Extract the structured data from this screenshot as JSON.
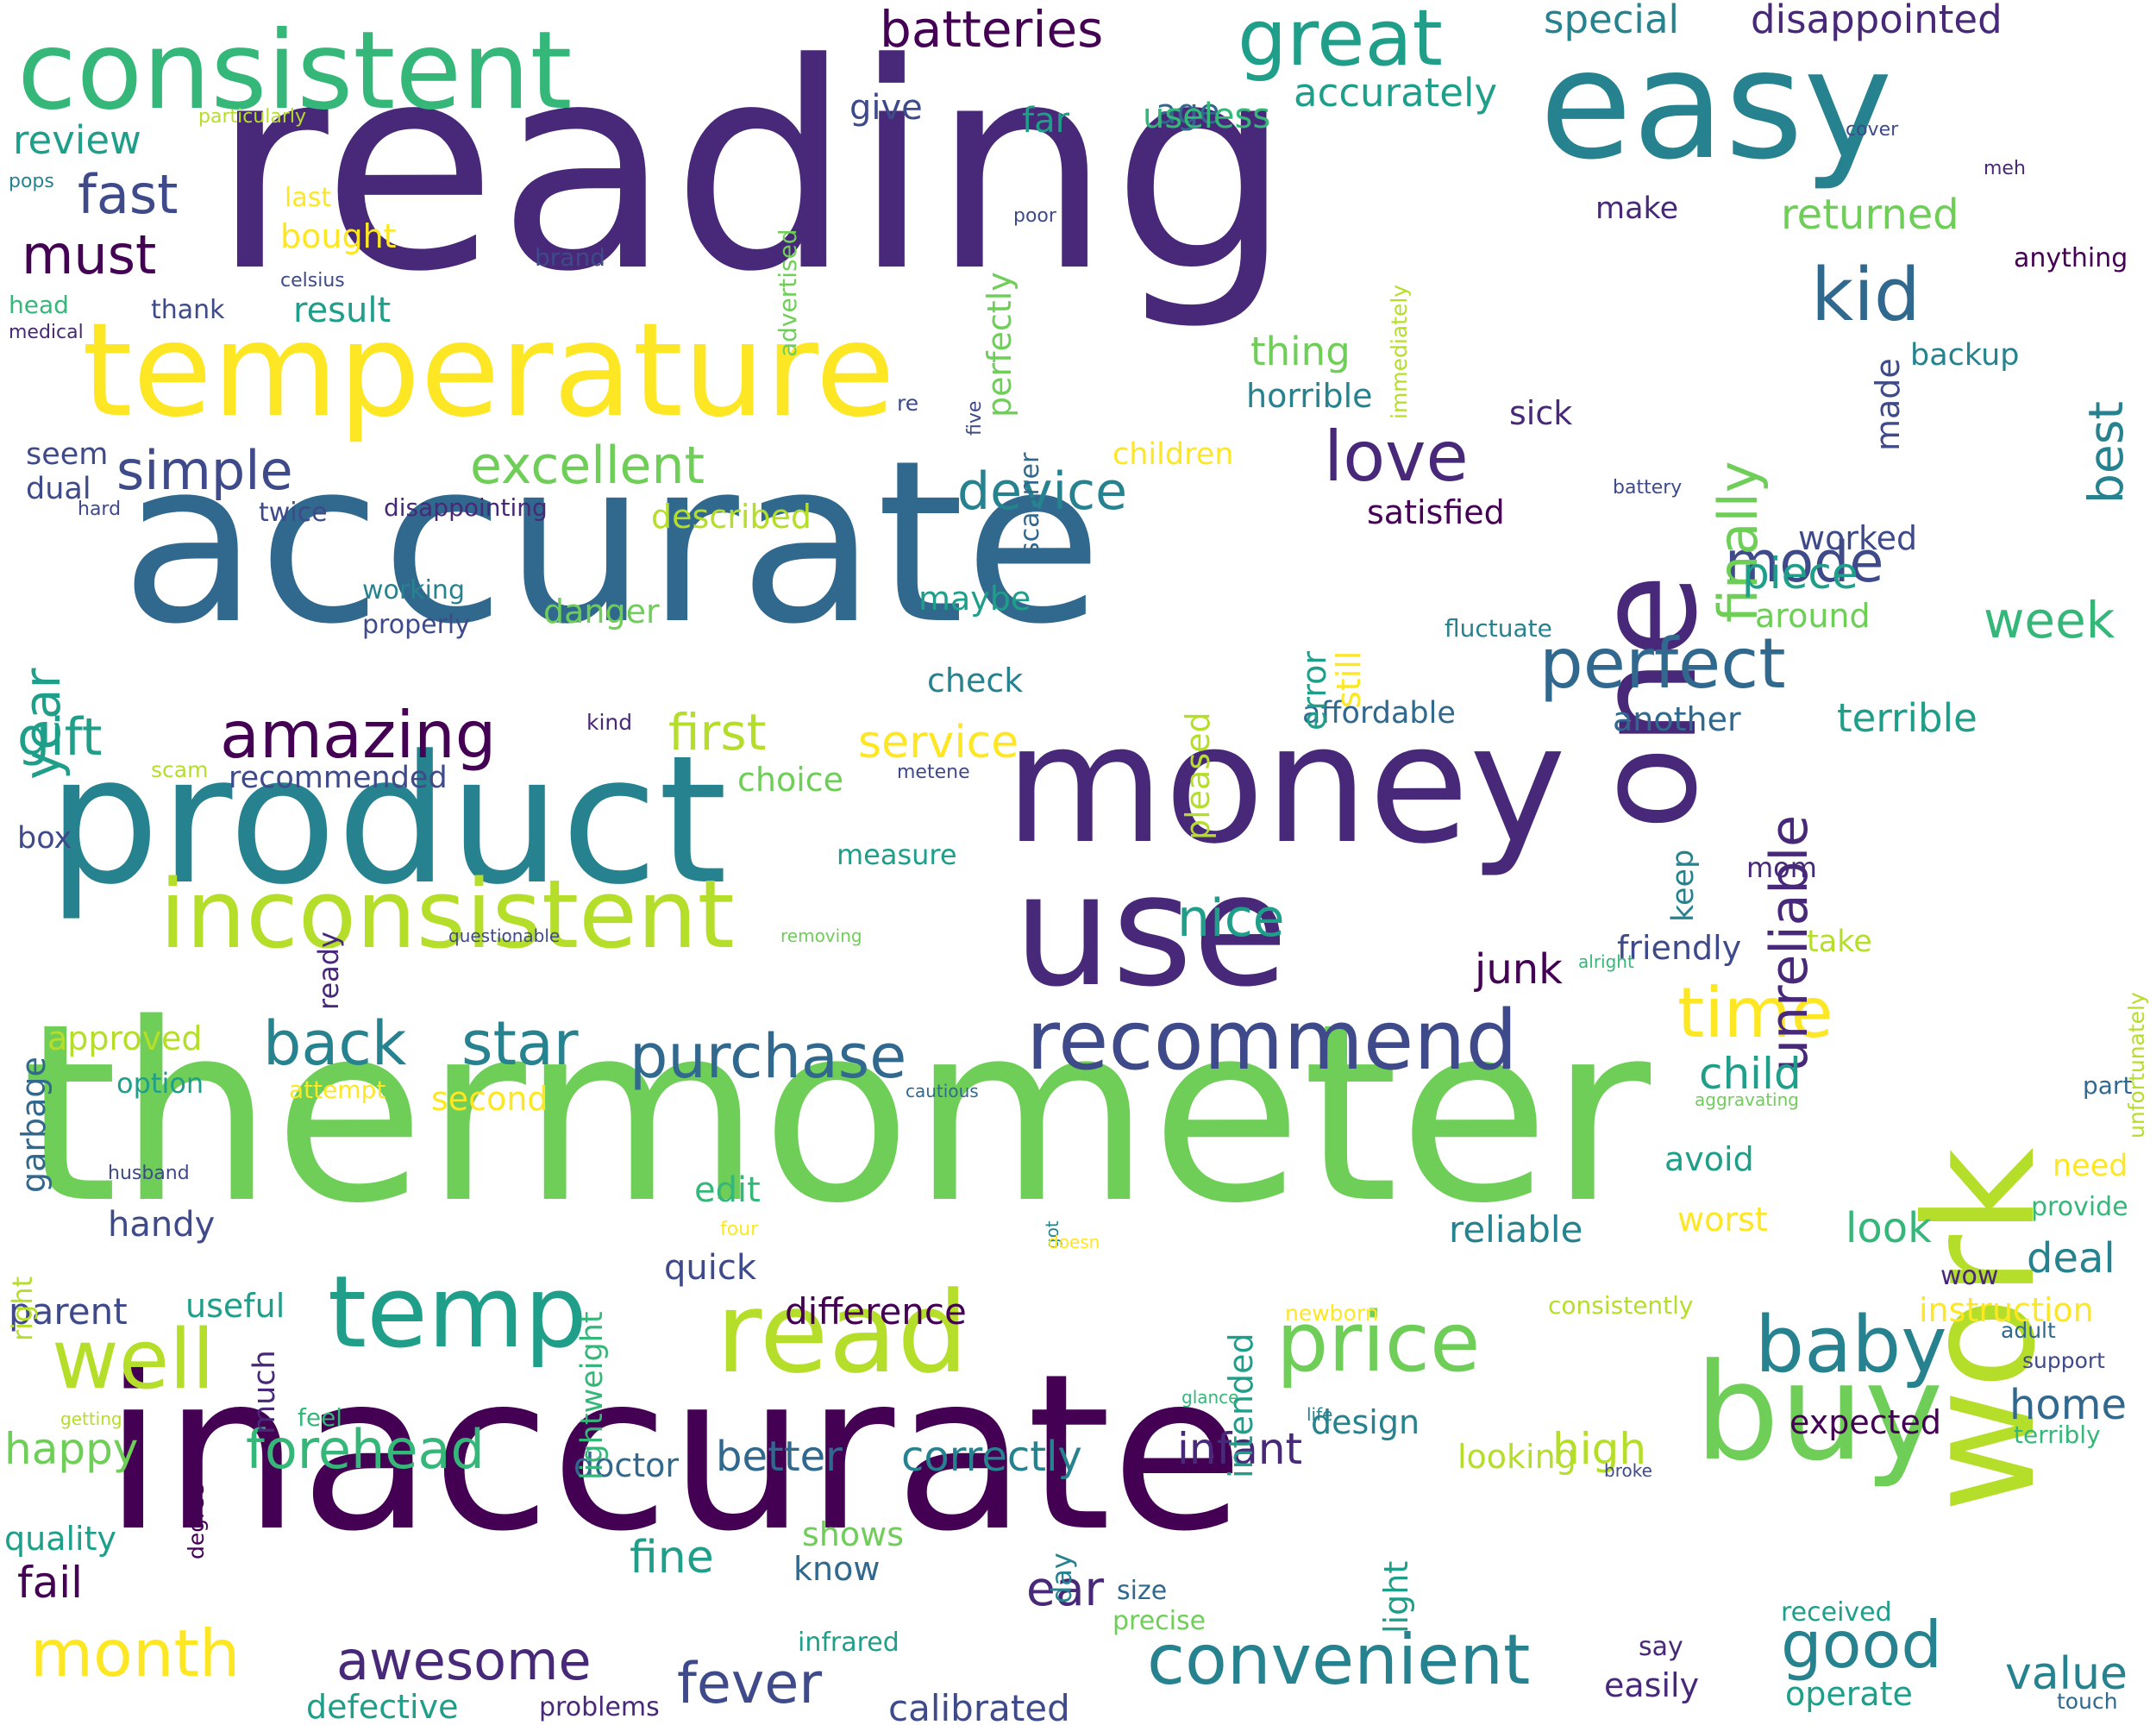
{
  "palette": {
    "d1": "#440154",
    "d2": "#482878",
    "d3": "#3e4a89",
    "d4": "#31688e",
    "d5": "#26828e",
    "d6": "#1f9e89",
    "d7": "#35b779",
    "d8": "#6ece58",
    "d9": "#b5de2b",
    "d10": "#fde725"
  },
  "words": [
    {
      "t": "reading",
      "c": "d2"
    },
    {
      "t": "accurate",
      "c": "d4"
    },
    {
      "t": "thermometer",
      "c": "d8"
    },
    {
      "t": "inaccurate",
      "c": "d1"
    },
    {
      "t": "product",
      "c": "d5"
    },
    {
      "t": "money",
      "c": "d2"
    },
    {
      "t": "use",
      "c": "d2"
    },
    {
      "t": "easy",
      "c": "d5"
    },
    {
      "t": "one",
      "c": "d2"
    },
    {
      "t": "work",
      "c": "d9"
    },
    {
      "t": "temperature",
      "c": "d10"
    },
    {
      "t": "consistent",
      "c": "d7"
    },
    {
      "t": "buy",
      "c": "d8"
    },
    {
      "t": "read",
      "c": "d9"
    },
    {
      "t": "temp",
      "c": "d6"
    },
    {
      "t": "inconsistent",
      "c": "d9"
    },
    {
      "t": "recommend",
      "c": "d3"
    },
    {
      "t": "great",
      "c": "d6"
    },
    {
      "t": "well",
      "c": "d9"
    },
    {
      "t": "price",
      "c": "d8"
    },
    {
      "t": "baby",
      "c": "d5"
    },
    {
      "t": "convenient",
      "c": "d5"
    },
    {
      "t": "good",
      "c": "d5"
    },
    {
      "t": "purchase",
      "c": "d4"
    },
    {
      "t": "back",
      "c": "d5"
    },
    {
      "t": "star",
      "c": "d5"
    },
    {
      "t": "amazing",
      "c": "d1"
    },
    {
      "t": "love",
      "c": "d2"
    },
    {
      "t": "perfect",
      "c": "d4"
    },
    {
      "t": "kid",
      "c": "d4"
    },
    {
      "t": "time",
      "c": "d10"
    },
    {
      "t": "forehead",
      "c": "d7"
    },
    {
      "t": "month",
      "c": "d10"
    },
    {
      "t": "fever",
      "c": "d3"
    },
    {
      "t": "awesome",
      "c": "d2"
    },
    {
      "t": "first",
      "c": "d9"
    },
    {
      "t": "excellent",
      "c": "d8"
    },
    {
      "t": "simple",
      "c": "d3"
    },
    {
      "t": "device",
      "c": "d5"
    },
    {
      "t": "mode",
      "c": "d3"
    },
    {
      "t": "batteries",
      "c": "d1"
    },
    {
      "t": "fast",
      "c": "d3"
    },
    {
      "t": "must",
      "c": "d1"
    },
    {
      "t": "gift",
      "c": "d6"
    },
    {
      "t": "year",
      "c": "d6"
    },
    {
      "t": "finally",
      "c": "d8"
    },
    {
      "t": "unreliable",
      "c": "d2"
    },
    {
      "t": "best",
      "c": "d5"
    },
    {
      "t": "week",
      "c": "d7"
    },
    {
      "t": "nice",
      "c": "d6"
    },
    {
      "t": "ear",
      "c": "d2"
    },
    {
      "t": "value",
      "c": "d5"
    },
    {
      "t": "home",
      "c": "d4"
    },
    {
      "t": "deal",
      "c": "d5"
    },
    {
      "t": "infant",
      "c": "d2"
    },
    {
      "t": "high",
      "c": "d9"
    },
    {
      "t": "happy",
      "c": "d8"
    },
    {
      "t": "fine",
      "c": "d6"
    },
    {
      "t": "better",
      "c": "d4"
    },
    {
      "t": "correctly",
      "c": "d5"
    },
    {
      "t": "difference",
      "c": "d1"
    },
    {
      "t": "child",
      "c": "d6"
    },
    {
      "t": "accurately",
      "c": "d6"
    },
    {
      "t": "disappointed",
      "c": "d2"
    },
    {
      "t": "special",
      "c": "d5"
    },
    {
      "t": "returned",
      "c": "d8"
    },
    {
      "t": "service",
      "c": "d10"
    },
    {
      "t": "piece",
      "c": "d6"
    },
    {
      "t": "fail",
      "c": "d1"
    },
    {
      "t": "calibrated",
      "c": "d3"
    },
    {
      "t": "terrible",
      "c": "d6"
    },
    {
      "t": "defective",
      "c": "d6"
    },
    {
      "t": "problems",
      "c": "d2"
    },
    {
      "t": "easily",
      "c": "d2"
    },
    {
      "t": "operate",
      "c": "d6"
    },
    {
      "t": "junk",
      "c": "d1"
    },
    {
      "t": "review",
      "c": "d6"
    },
    {
      "t": "age",
      "c": "d4"
    },
    {
      "t": "give",
      "c": "d3"
    },
    {
      "t": "far",
      "c": "d6"
    },
    {
      "t": "useless",
      "c": "d7"
    },
    {
      "t": "result",
      "c": "d6"
    },
    {
      "t": "thing",
      "c": "d8"
    },
    {
      "t": "horrible",
      "c": "d5"
    },
    {
      "t": "seem",
      "c": "d3"
    },
    {
      "t": "dual",
      "c": "d3"
    },
    {
      "t": "twice",
      "c": "d3"
    },
    {
      "t": "disappointing",
      "c": "d2"
    },
    {
      "t": "described",
      "c": "d9"
    },
    {
      "t": "satisfied",
      "c": "d1"
    },
    {
      "t": "sick",
      "c": "d2"
    },
    {
      "t": "made",
      "c": "d3"
    },
    {
      "t": "worked",
      "c": "d3"
    },
    {
      "t": "around",
      "c": "d8"
    },
    {
      "t": "another",
      "c": "d4"
    },
    {
      "t": "affordable",
      "c": "d4"
    },
    {
      "t": "check",
      "c": "d5"
    },
    {
      "t": "maybe",
      "c": "d6"
    },
    {
      "t": "danger",
      "c": "d8"
    },
    {
      "t": "working",
      "c": "d5"
    },
    {
      "t": "properly",
      "c": "d3"
    },
    {
      "t": "recommended",
      "c": "d3"
    },
    {
      "t": "choice",
      "c": "d8"
    },
    {
      "t": "box",
      "c": "d3"
    },
    {
      "t": "garbage",
      "c": "d4"
    },
    {
      "t": "approved",
      "c": "d9"
    },
    {
      "t": "option",
      "c": "d6"
    },
    {
      "t": "attempt",
      "c": "d10"
    },
    {
      "t": "second",
      "c": "d10"
    },
    {
      "t": "measure",
      "c": "d6"
    },
    {
      "t": "ready",
      "c": "d2"
    },
    {
      "t": "keep",
      "c": "d5"
    },
    {
      "t": "mom",
      "c": "d2"
    },
    {
      "t": "take",
      "c": "d9"
    },
    {
      "t": "friendly",
      "c": "d3"
    },
    {
      "t": "edit",
      "c": "d7"
    },
    {
      "t": "handy",
      "c": "d3"
    },
    {
      "t": "parent",
      "c": "d3"
    },
    {
      "t": "useful",
      "c": "d6"
    },
    {
      "t": "quick",
      "c": "d3"
    },
    {
      "t": "reliable",
      "c": "d5"
    },
    {
      "t": "worst",
      "c": "d10"
    },
    {
      "t": "look",
      "c": "d7"
    },
    {
      "t": "avoid",
      "c": "d6"
    },
    {
      "t": "need",
      "c": "d10"
    },
    {
      "t": "provide",
      "c": "d7"
    },
    {
      "t": "instruction",
      "c": "d10"
    },
    {
      "t": "wow",
      "c": "d2"
    },
    {
      "t": "adult",
      "c": "d4"
    },
    {
      "t": "support",
      "c": "d3"
    },
    {
      "t": "expected",
      "c": "d1"
    },
    {
      "t": "terribly",
      "c": "d7"
    },
    {
      "t": "looking",
      "c": "d9"
    },
    {
      "t": "design",
      "c": "d5"
    },
    {
      "t": "feel",
      "c": "d7"
    },
    {
      "t": "doctor",
      "c": "d4"
    },
    {
      "t": "quality",
      "c": "d6"
    },
    {
      "t": "shows",
      "c": "d8"
    },
    {
      "t": "know",
      "c": "d4"
    },
    {
      "t": "day",
      "c": "d5"
    },
    {
      "t": "size",
      "c": "d4"
    },
    {
      "t": "precise",
      "c": "d8"
    },
    {
      "t": "infrared",
      "c": "d6"
    },
    {
      "t": "received",
      "c": "d6"
    },
    {
      "t": "say",
      "c": "d2"
    },
    {
      "t": "touch",
      "c": "d4"
    },
    {
      "t": "light",
      "c": "d6"
    },
    {
      "t": "lightweight",
      "c": "d7"
    },
    {
      "t": "much",
      "c": "d2"
    },
    {
      "t": "intended",
      "c": "d6"
    },
    {
      "t": "pleased",
      "c": "d9"
    },
    {
      "t": "error",
      "c": "d6"
    },
    {
      "t": "still",
      "c": "d10"
    },
    {
      "t": "perfectly",
      "c": "d8"
    },
    {
      "t": "scanner",
      "c": "d4"
    },
    {
      "t": "advertised",
      "c": "d8"
    },
    {
      "t": "immediately",
      "c": "d9"
    },
    {
      "t": "right",
      "c": "d9"
    },
    {
      "t": "degree",
      "c": "d1"
    },
    {
      "t": "unfortunately",
      "c": "d9"
    },
    {
      "t": "particularly",
      "c": "d9"
    },
    {
      "t": "last",
      "c": "d10"
    },
    {
      "t": "bought",
      "c": "d10"
    },
    {
      "t": "celsius",
      "c": "d3"
    },
    {
      "t": "thank",
      "c": "d3"
    },
    {
      "t": "head",
      "c": "d7"
    },
    {
      "t": "medical",
      "c": "d2"
    },
    {
      "t": "pops",
      "c": "d5"
    },
    {
      "t": "brand",
      "c": "d3"
    },
    {
      "t": "poor",
      "c": "d3"
    },
    {
      "t": "re",
      "c": "d3"
    },
    {
      "t": "five",
      "c": "d3"
    },
    {
      "t": "make",
      "c": "d2"
    },
    {
      "t": "cover",
      "c": "d3"
    },
    {
      "t": "meh",
      "c": "d2"
    },
    {
      "t": "anything",
      "c": "d1"
    },
    {
      "t": "backup",
      "c": "d5"
    },
    {
      "t": "children",
      "c": "d10"
    },
    {
      "t": "battery",
      "c": "d3"
    },
    {
      "t": "hard",
      "c": "d3"
    },
    {
      "t": "fluctuate",
      "c": "d5"
    },
    {
      "t": "kind",
      "c": "d2"
    },
    {
      "t": "scam",
      "c": "d9"
    },
    {
      "t": "metene",
      "c": "d3"
    },
    {
      "t": "questionable",
      "c": "d3"
    },
    {
      "t": "removing",
      "c": "d8"
    },
    {
      "t": "alright",
      "c": "d7"
    },
    {
      "t": "cautious",
      "c": "d4"
    },
    {
      "t": "aggravating",
      "c": "d8"
    },
    {
      "t": "part",
      "c": "d4"
    },
    {
      "t": "husband",
      "c": "d3"
    },
    {
      "t": "four",
      "c": "d10"
    },
    {
      "t": "got",
      "c": "d5"
    },
    {
      "t": "doesn",
      "c": "d10"
    },
    {
      "t": "newborn",
      "c": "d10"
    },
    {
      "t": "consistently",
      "c": "d9"
    },
    {
      "t": "getting",
      "c": "d9"
    },
    {
      "t": "glance",
      "c": "d7"
    },
    {
      "t": "life",
      "c": "d5"
    },
    {
      "t": "broke",
      "c": "d3"
    }
  ]
}
